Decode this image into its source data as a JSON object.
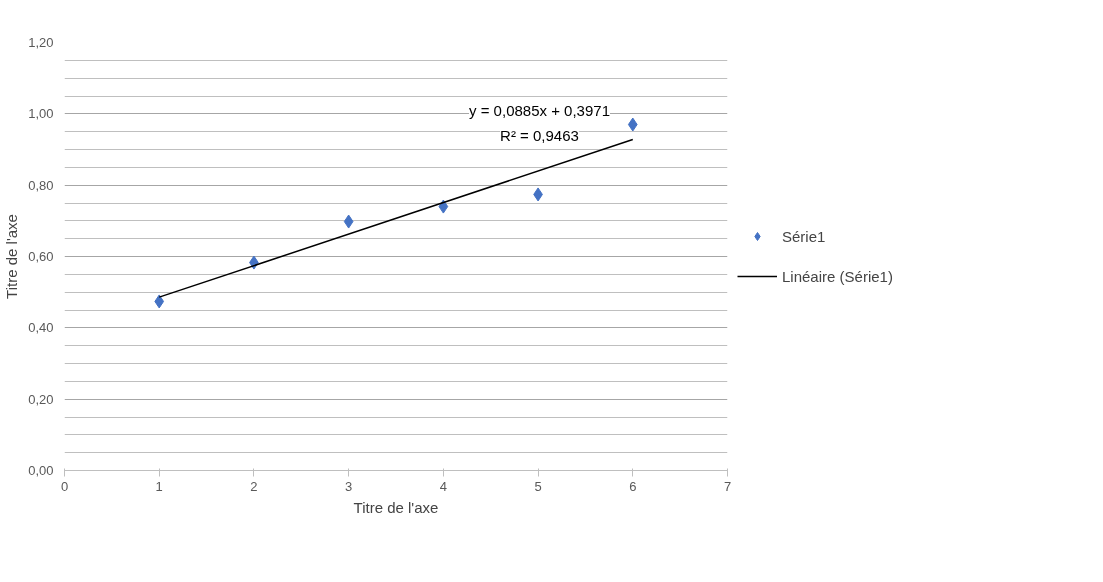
{
  "chart_data": {
    "type": "scatter",
    "xlabel": "Titre de l'axe",
    "ylabel": "Titre de l'axe",
    "x": [
      1,
      2,
      3,
      4,
      5,
      6
    ],
    "series": [
      {
        "name": "Série1",
        "color": "#4472c4",
        "marker": "diamond",
        "values": [
          0.474,
          0.583,
          0.698,
          0.74,
          0.774,
          0.97
        ]
      },
      {
        "name": "Linéaire (Série1)",
        "type": "line",
        "color": "#000000",
        "x": [
          1,
          6
        ],
        "values": [
          0.486,
          0.928
        ]
      }
    ],
    "annotations": [
      "y = 0,0885x + 0,3971",
      "R² = 0,9463"
    ],
    "xlim": [
      0,
      7
    ],
    "xticks": [
      0,
      1,
      2,
      3,
      4,
      5,
      6,
      7
    ],
    "ylim": [
      0,
      1.2
    ],
    "yticks": [
      {
        "value": 0,
        "label": "0,00"
      },
      {
        "value": 0.2,
        "label": "0,20"
      },
      {
        "value": 0.4,
        "label": "0,40"
      },
      {
        "value": 0.6,
        "label": "0,60"
      },
      {
        "value": 0.8,
        "label": "0,80"
      },
      {
        "value": 1.0,
        "label": "1,00"
      },
      {
        "value": 1.2,
        "label": "1,20"
      }
    ],
    "grid": "y",
    "legend": "right"
  }
}
